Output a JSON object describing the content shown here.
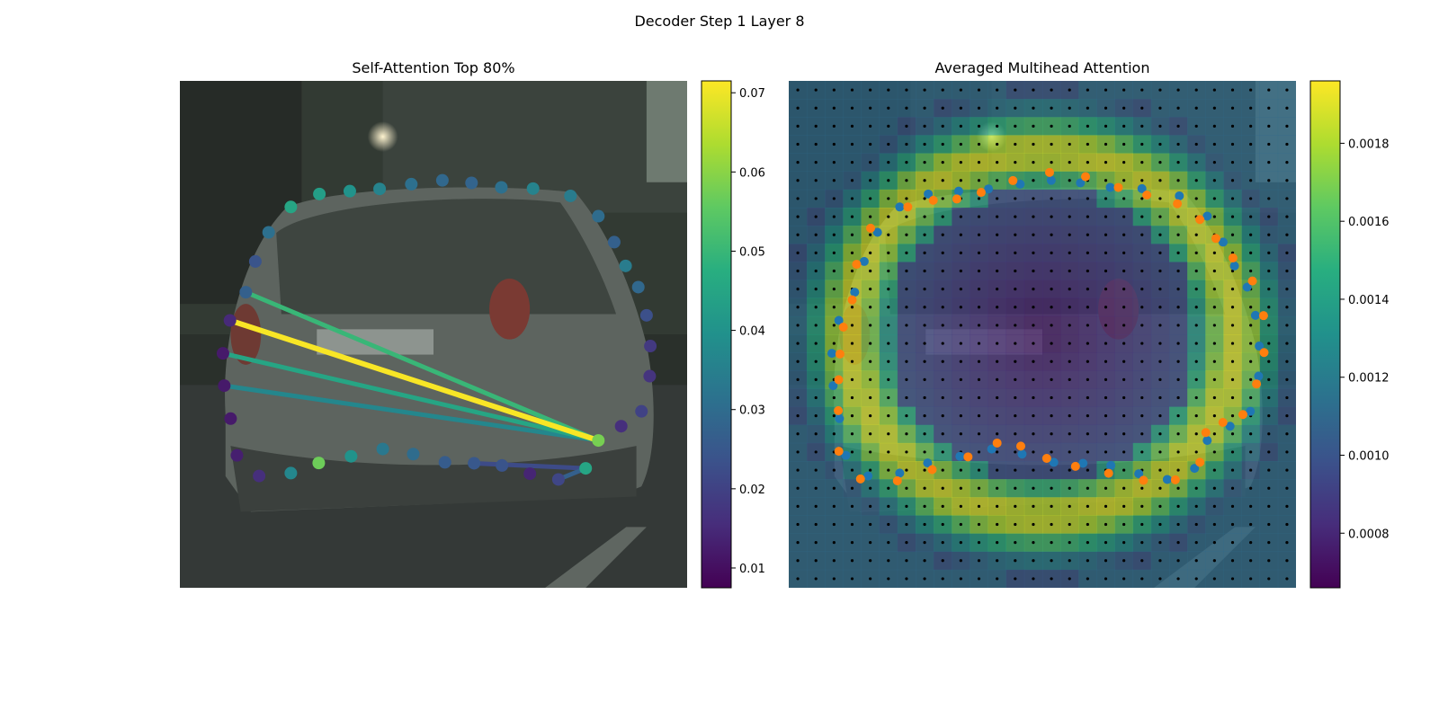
{
  "figure": {
    "suptitle": "Decoder Step 1 Layer 8"
  },
  "chart_data": [
    {
      "type": "scatter",
      "title": "Self-Attention Top 80%",
      "background": "photo of the rear of a silver hatchback car on a city street",
      "colormap": "viridis",
      "colorbar": {
        "range": [
          0.0075,
          0.0715
        ],
        "ticks": [
          "0.01",
          "0.02",
          "0.03",
          "0.04",
          "0.05",
          "0.06",
          "0.07"
        ]
      },
      "points_note": "polygon vertices, x/y in image pixel coordinates (0-1600 wide, 0-1600 tall) with color value",
      "points": [
        {
          "x": 350,
          "y": 398,
          "v": 0.045
        },
        {
          "x": 440,
          "y": 357,
          "v": 0.043
        },
        {
          "x": 536,
          "y": 348,
          "v": 0.04
        },
        {
          "x": 630,
          "y": 341,
          "v": 0.036
        },
        {
          "x": 730,
          "y": 326,
          "v": 0.031
        },
        {
          "x": 828,
          "y": 314,
          "v": 0.029
        },
        {
          "x": 920,
          "y": 322,
          "v": 0.028
        },
        {
          "x": 1014,
          "y": 336,
          "v": 0.031
        },
        {
          "x": 1114,
          "y": 340,
          "v": 0.036
        },
        {
          "x": 1232,
          "y": 363,
          "v": 0.034
        },
        {
          "x": 1320,
          "y": 427,
          "v": 0.03
        },
        {
          "x": 1370,
          "y": 509,
          "v": 0.027
        },
        {
          "x": 1406,
          "y": 584,
          "v": 0.034
        },
        {
          "x": 1446,
          "y": 651,
          "v": 0.029
        },
        {
          "x": 1472,
          "y": 740,
          "v": 0.023
        },
        {
          "x": 1484,
          "y": 837,
          "v": 0.018
        },
        {
          "x": 1482,
          "y": 932,
          "v": 0.017
        },
        {
          "x": 1456,
          "y": 1043,
          "v": 0.02
        },
        {
          "x": 1392,
          "y": 1090,
          "v": 0.016
        },
        {
          "x": 1320,
          "y": 1135,
          "v": 0.058
        },
        {
          "x": 1280,
          "y": 1223,
          "v": 0.045
        },
        {
          "x": 1194,
          "y": 1258,
          "v": 0.021
        },
        {
          "x": 1104,
          "y": 1240,
          "v": 0.014
        },
        {
          "x": 1016,
          "y": 1214,
          "v": 0.024
        },
        {
          "x": 928,
          "y": 1207,
          "v": 0.025
        },
        {
          "x": 836,
          "y": 1204,
          "v": 0.026
        },
        {
          "x": 736,
          "y": 1178,
          "v": 0.03
        },
        {
          "x": 640,
          "y": 1162,
          "v": 0.033
        },
        {
          "x": 540,
          "y": 1185,
          "v": 0.04
        },
        {
          "x": 438,
          "y": 1206,
          "v": 0.057
        },
        {
          "x": 350,
          "y": 1238,
          "v": 0.037
        },
        {
          "x": 250,
          "y": 1247,
          "v": 0.016
        },
        {
          "x": 180,
          "y": 1182,
          "v": 0.013
        },
        {
          "x": 160,
          "y": 1066,
          "v": 0.012
        },
        {
          "x": 140,
          "y": 962,
          "v": 0.012
        },
        {
          "x": 136,
          "y": 860,
          "v": 0.012
        },
        {
          "x": 158,
          "y": 756,
          "v": 0.015
        },
        {
          "x": 208,
          "y": 667,
          "v": 0.027
        },
        {
          "x": 238,
          "y": 570,
          "v": 0.024
        },
        {
          "x": 280,
          "y": 478,
          "v": 0.031
        }
      ],
      "lines": [
        {
          "from_index": 36,
          "to_index": 19,
          "v": 0.071
        },
        {
          "from_index": 37,
          "to_index": 19,
          "v": 0.05
        },
        {
          "from_index": 35,
          "to_index": 19,
          "v": 0.045
        },
        {
          "from_index": 34,
          "to_index": 19,
          "v": 0.037
        },
        {
          "from_index": 21,
          "to_index": 20,
          "v": 0.027
        },
        {
          "from_index": 24,
          "to_index": 20,
          "v": 0.022
        }
      ]
    },
    {
      "type": "heatmap",
      "title": "Averaged Multihead Attention",
      "background": "same car photo overlaid with attention heatmap",
      "colormap": "viridis",
      "colorbar": {
        "range": [
          0.00066,
          0.00196
        ],
        "ticks": [
          "0.0008",
          "0.0010",
          "0.0012",
          "0.0014",
          "0.0016",
          "0.0018"
        ]
      },
      "grid": {
        "rows": 28,
        "cols": 28
      },
      "series": [
        {
          "color": "#1f77b4"
        },
        {
          "color": "#ff7f0e"
        }
      ]
    }
  ]
}
